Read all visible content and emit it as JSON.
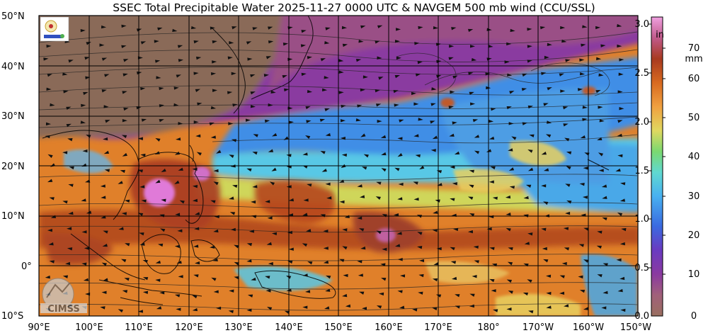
{
  "title": "SSEC Total Precipitable Water  2025-11-27 0000 UTC & NAVGEM 500 mb wind (CCU/SSL)",
  "map": {
    "lat_labels": [
      "50°N",
      "40°N",
      "30°N",
      "20°N",
      "10°N",
      "0°",
      "10°S"
    ],
    "lon_labels": [
      "90°E",
      "100°E",
      "110°E",
      "120°E",
      "130°E",
      "140°E",
      "150°E",
      "160°E",
      "170°E",
      "180°",
      "170°W",
      "160°W",
      "150°W"
    ]
  },
  "colorbar": {
    "in_unit": "in",
    "mm_unit": "mm",
    "in_ticks": [
      "3.0",
      "2.5",
      "2.0",
      "1.5",
      "1.0",
      "0.5",
      "0.0"
    ],
    "mm_ticks": [
      "70",
      "60",
      "50",
      "40",
      "30",
      "20",
      "10",
      "0"
    ]
  },
  "logos": {
    "cimss": "CIMSS"
  },
  "colors": {
    "land_dry": "#8a6a58",
    "very_dry": "#9a4f86",
    "purple": "#8a3aa0",
    "blue": "#3f8ee6",
    "cyan": "#58c8e6",
    "green": "#6fd27a",
    "yellow": "#e8d060",
    "orange": "#e88a2a",
    "dark_orange": "#c45a18",
    "brown_red": "#9a3a2a",
    "pink": "#e07ad8"
  }
}
